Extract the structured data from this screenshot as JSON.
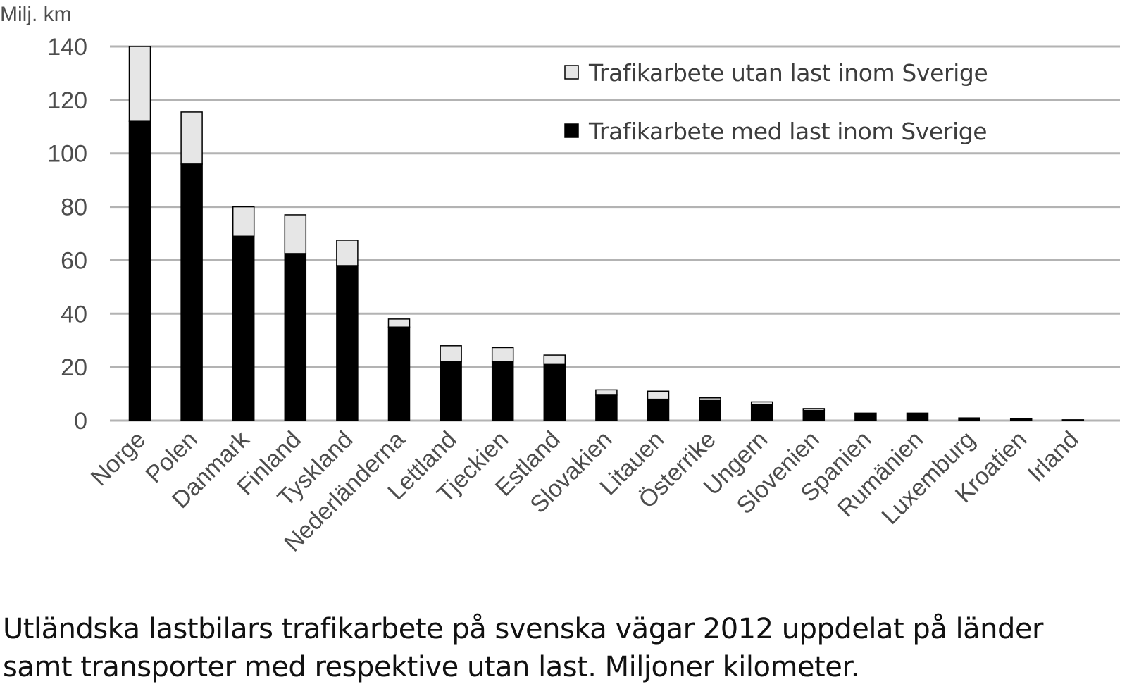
{
  "chart_data": {
    "type": "bar",
    "stacked": true,
    "title": "",
    "ylabel": "Milj. km",
    "xlabel": "",
    "ylim": [
      0,
      140
    ],
    "yticks": [
      0,
      20,
      40,
      60,
      80,
      100,
      120,
      140
    ],
    "grid": true,
    "legend_position": "top-right",
    "categories": [
      "Norge",
      "Polen",
      "Danmark",
      "Finland",
      "Tyskland",
      "Nederländerna",
      "Lettland",
      "Tjeckien",
      "Estland",
      "Slovakien",
      "Litauen",
      "Österrike",
      "Ungern",
      "Slovenien",
      "Spanien",
      "Rumänien",
      "Luxemburg",
      "Kroatien",
      "Irland"
    ],
    "series": [
      {
        "name": "Trafikarbete med last inom Sverige",
        "color": "#000000",
        "values": [
          112,
          96,
          69,
          62.5,
          58,
          35,
          22,
          22,
          21,
          9.5,
          8,
          7.5,
          6,
          3.8,
          2.8,
          2.8,
          1,
          0.6,
          0.3
        ]
      },
      {
        "name": "Trafikarbete utan last inom Sverige",
        "color": "#e6e6e6",
        "values": [
          28,
          19.5,
          11,
          14.5,
          9.5,
          3,
          6,
          5.3,
          3.5,
          2,
          3,
          1,
          1,
          0.7,
          0,
          0,
          0,
          0,
          0
        ]
      }
    ]
  },
  "caption": {
    "line1": "Utländska lastbilars trafikarbete på svenska vägar 2012 uppdelat på länder",
    "line2": "samt transporter med respektive utan last. Miljoner kilometer."
  },
  "colors": {
    "grid": "#b3b3b3",
    "axis_text": "#4d4d4d",
    "bar_outline": "#000000"
  }
}
